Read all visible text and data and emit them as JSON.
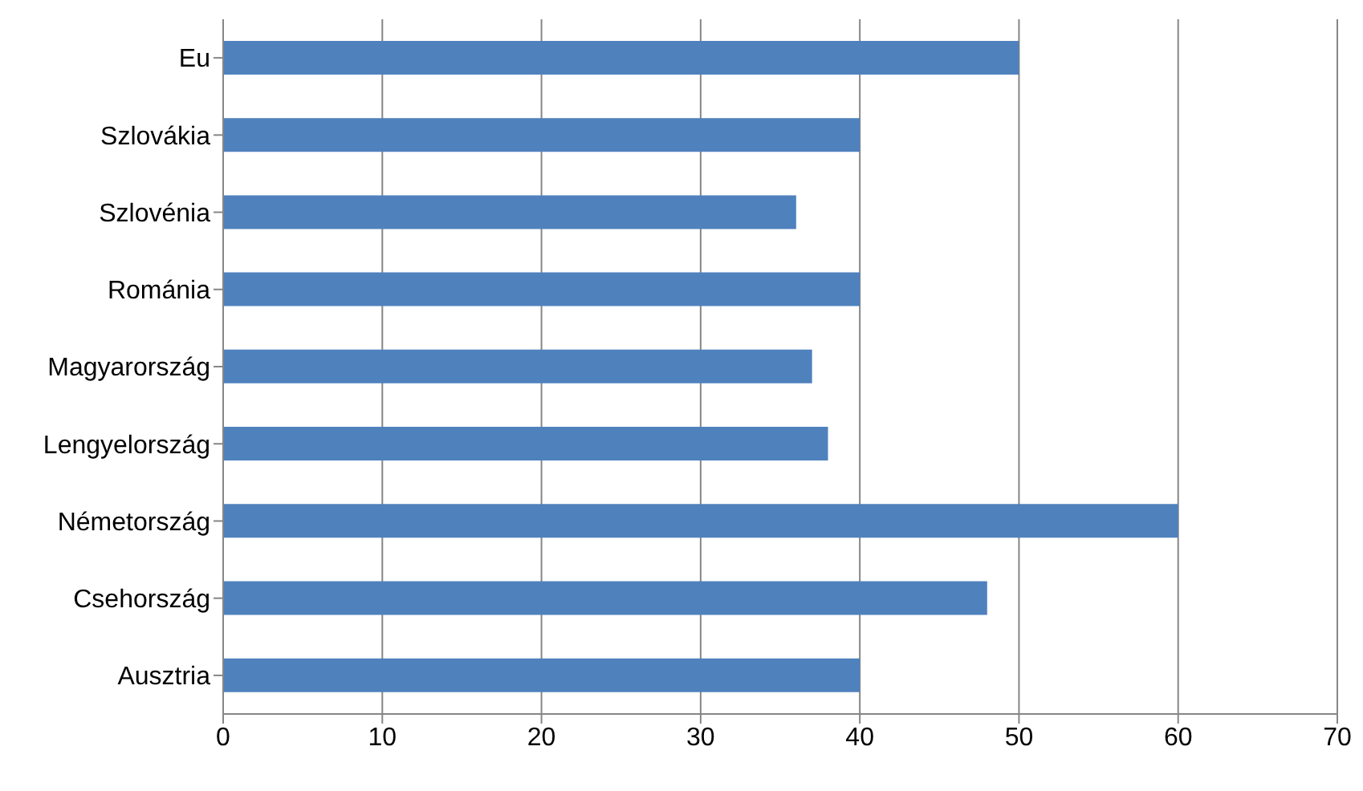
{
  "chart_data": {
    "type": "bar",
    "orientation": "horizontal",
    "categories": [
      "Eu",
      "Szlovákia",
      "Szlovénia",
      "Románia",
      "Magyarország",
      "Lengyelország",
      "Németország",
      "Csehország",
      "Ausztria"
    ],
    "values": [
      50,
      40,
      36,
      40,
      37,
      38,
      60,
      48,
      40
    ],
    "color": "#4f81bd",
    "xlim": [
      0,
      70
    ],
    "xticks": [
      0,
      10,
      20,
      30,
      40,
      50,
      60,
      70
    ],
    "grid": "x"
  }
}
